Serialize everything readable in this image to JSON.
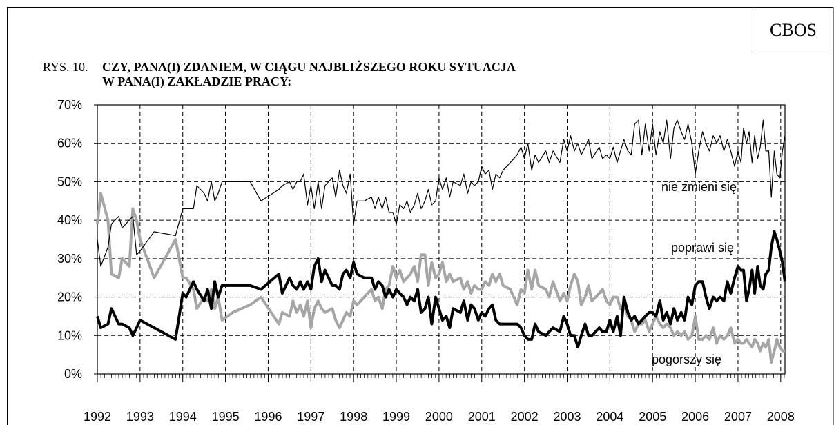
{
  "chart_data": {
    "type": "line",
    "source": "CBOS",
    "title_prefix": "RYS. 10.",
    "title": [
      "CZY, PANA(I) ZDANIEM, W CIĄGU NAJBLIŻSZEGO ROKU SYTUACJA",
      "W PANA(I) ZAKŁADZIE PRACY:"
    ],
    "annotations": [
      "nie zmieni się",
      "poprawi się",
      "pogorszy się"
    ],
    "xlim": [
      1992,
      2008.1
    ],
    "xticks": [
      1992,
      1993,
      1994,
      1995,
      1996,
      1997,
      1998,
      1999,
      2000,
      2001,
      2002,
      2003,
      2004,
      2005,
      2006,
      2007,
      2008
    ],
    "ylim": [
      0,
      70
    ],
    "yticks": [
      {
        "value": 0,
        "label": "0%"
      },
      {
        "value": 10,
        "label": "10%"
      },
      {
        "value": 20,
        "label": "20%"
      },
      {
        "value": 30,
        "label": "30%"
      },
      {
        "value": 40,
        "label": "40%"
      },
      {
        "value": 50,
        "label": "50%"
      },
      {
        "value": 60,
        "label": "60%"
      },
      {
        "value": 70,
        "label": "70%"
      }
    ],
    "grid": true,
    "x": [
      1992.0,
      1992.08,
      1992.25,
      1992.33,
      1992.5,
      1992.58,
      1992.75,
      1992.83,
      1992.92,
      1993.0,
      1993.33,
      1993.83,
      1994.0,
      1994.08,
      1994.25,
      1994.33,
      1994.5,
      1994.58,
      1994.67,
      1994.75,
      1994.83,
      1994.92,
      1995.17,
      1995.58,
      1995.83,
      1996.25,
      1996.33,
      1996.5,
      1996.58,
      1996.67,
      1996.75,
      1996.83,
      1996.92,
      1997.0,
      1997.08,
      1997.17,
      1997.25,
      1997.33,
      1997.5,
      1997.58,
      1997.67,
      1997.75,
      1997.83,
      1997.92,
      1998.0,
      1998.08,
      1998.25,
      1998.42,
      1998.5,
      1998.58,
      1998.67,
      1998.75,
      1998.83,
      1998.92,
      1999.0,
      1999.08,
      1999.17,
      1999.25,
      1999.33,
      1999.42,
      1999.5,
      1999.58,
      1999.67,
      1999.75,
      1999.83,
      1999.92,
      2000.0,
      2000.08,
      2000.17,
      2000.25,
      2000.33,
      2000.5,
      2000.58,
      2000.67,
      2000.75,
      2000.83,
      2000.92,
      2001.0,
      2001.08,
      2001.17,
      2001.25,
      2001.33,
      2001.42,
      2001.5,
      2001.67,
      2001.83,
      2001.92,
      2002.0,
      2002.08,
      2002.17,
      2002.25,
      2002.33,
      2002.5,
      2002.58,
      2002.67,
      2002.83,
      2002.92,
      2003.0,
      2003.08,
      2003.17,
      2003.25,
      2003.33,
      2003.42,
      2003.5,
      2003.58,
      2003.75,
      2003.83,
      2003.92,
      2004.0,
      2004.08,
      2004.17,
      2004.25,
      2004.33,
      2004.42,
      2004.5,
      2004.58,
      2004.67,
      2004.75,
      2004.83,
      2004.92,
      2005.0,
      2005.08,
      2005.17,
      2005.25,
      2005.33,
      2005.42,
      2005.5,
      2005.58,
      2005.67,
      2005.75,
      2005.83,
      2005.92,
      2006.0,
      2006.08,
      2006.17,
      2006.25,
      2006.33,
      2006.42,
      2006.5,
      2006.58,
      2006.67,
      2006.75,
      2006.83,
      2006.92,
      2007.0,
      2007.07,
      2007.13,
      2007.2,
      2007.26,
      2007.33,
      2007.39,
      2007.46,
      2007.52,
      2007.59,
      2007.65,
      2007.72,
      2007.78,
      2007.85,
      2007.91,
      2007.98,
      2008.04,
      2008.1
    ],
    "series": [
      {
        "name": "nie zmieni się",
        "color": "#000000",
        "width": 1.2,
        "values": [
          35,
          28,
          33,
          39,
          41,
          38,
          40,
          41,
          31,
          32,
          37,
          36,
          43,
          43,
          43,
          49,
          47,
          45,
          50,
          45,
          47,
          50,
          50,
          50,
          45,
          48,
          49,
          50,
          48,
          50,
          50,
          52,
          44,
          49,
          43,
          50,
          43,
          49,
          51,
          46,
          53,
          49,
          47,
          52,
          39,
          45,
          45,
          46,
          43,
          46,
          43,
          46,
          42,
          42,
          39,
          44,
          43,
          45,
          42,
          44,
          47,
          43,
          45,
          48,
          44,
          45,
          51,
          48,
          51,
          46,
          50,
          49,
          52,
          47,
          50,
          49,
          50,
          54,
          52,
          53,
          48,
          52,
          51,
          53,
          55,
          57,
          59,
          56,
          60,
          53,
          57,
          55,
          58,
          55,
          58,
          55,
          61,
          58,
          62,
          58,
          60,
          57,
          59,
          61,
          56,
          59,
          56,
          57,
          56,
          59,
          55,
          58,
          61,
          58,
          57,
          65,
          66,
          57,
          65,
          58,
          65,
          57,
          63,
          60,
          66,
          56,
          64,
          66,
          63,
          61,
          65,
          60,
          52,
          58,
          63,
          60,
          58,
          62,
          60,
          62,
          58,
          61,
          58,
          54,
          58,
          55,
          64,
          60,
          63,
          55,
          62,
          56,
          59,
          66,
          58,
          58,
          46,
          58,
          52,
          51,
          58,
          62
        ]
      },
      {
        "name": "poprawi się",
        "color": "#000000",
        "width": 4,
        "values": [
          15,
          12,
          13,
          17,
          13,
          13,
          12,
          10,
          12,
          14,
          12,
          9,
          21,
          20,
          24,
          22,
          19,
          22,
          17,
          24,
          20,
          23,
          23,
          23,
          22,
          26,
          21,
          25,
          23,
          22,
          24,
          22,
          24,
          22,
          28,
          30,
          24,
          27,
          23,
          23,
          22,
          26,
          27,
          25,
          29,
          26,
          25,
          25,
          22,
          24,
          23,
          20,
          22,
          20,
          22,
          21,
          20,
          18,
          20,
          19,
          22,
          16,
          17,
          20,
          13,
          20,
          17,
          14,
          15,
          12,
          17,
          16,
          19,
          14,
          18,
          17,
          14,
          16,
          15,
          17,
          18,
          14,
          13,
          13,
          13,
          13,
          12,
          10,
          9,
          9,
          13,
          11,
          10,
          11,
          12,
          11,
          15,
          13,
          10,
          10,
          7,
          10,
          13,
          10,
          10,
          12,
          11,
          11,
          14,
          11,
          15,
          10,
          20,
          16,
          14,
          15,
          13,
          14,
          15,
          16,
          16,
          15,
          19,
          14,
          16,
          13,
          17,
          14,
          16,
          14,
          20,
          18,
          23,
          24,
          24,
          20,
          17,
          20,
          19,
          20,
          19,
          24,
          21,
          25,
          28,
          27,
          27,
          19,
          22,
          27,
          21,
          28,
          23,
          22,
          26,
          27,
          33,
          37,
          35,
          32,
          29,
          24
        ]
      },
      {
        "name": "pogorszy się",
        "color": "#a6a6a6",
        "width": 4,
        "values": [
          39,
          47,
          40,
          26,
          25,
          30,
          28,
          43,
          40,
          35,
          25,
          35,
          25,
          25,
          22,
          17,
          20,
          19,
          22,
          17,
          20,
          14,
          16,
          18,
          20,
          13,
          16,
          15,
          19,
          16,
          18,
          15,
          19,
          12,
          17,
          19,
          17,
          16,
          17,
          14,
          12,
          14,
          16,
          15,
          19,
          18,
          20,
          22,
          19,
          20,
          17,
          22,
          23,
          28,
          25,
          27,
          24,
          25,
          26,
          28,
          24,
          31,
          31,
          23,
          29,
          25,
          26,
          29,
          24,
          26,
          24,
          25,
          22,
          24,
          21,
          23,
          22,
          22,
          24,
          23,
          26,
          24,
          26,
          23,
          22,
          18,
          22,
          21,
          27,
          22,
          27,
          23,
          22,
          20,
          24,
          19,
          21,
          19,
          23,
          26,
          24,
          18,
          20,
          23,
          19,
          21,
          22,
          19,
          18,
          20,
          20,
          17,
          18,
          15,
          14,
          11,
          13,
          13,
          14,
          11,
          13,
          15,
          13,
          12,
          13,
          12,
          10,
          11,
          10,
          11,
          9,
          10,
          15,
          9,
          9,
          10,
          9,
          12,
          8,
          10,
          9,
          10,
          12,
          8,
          9,
          8,
          8,
          9,
          8,
          7,
          9,
          8,
          6,
          8,
          7,
          9,
          3,
          6,
          9,
          7,
          6,
          6
        ]
      }
    ]
  }
}
